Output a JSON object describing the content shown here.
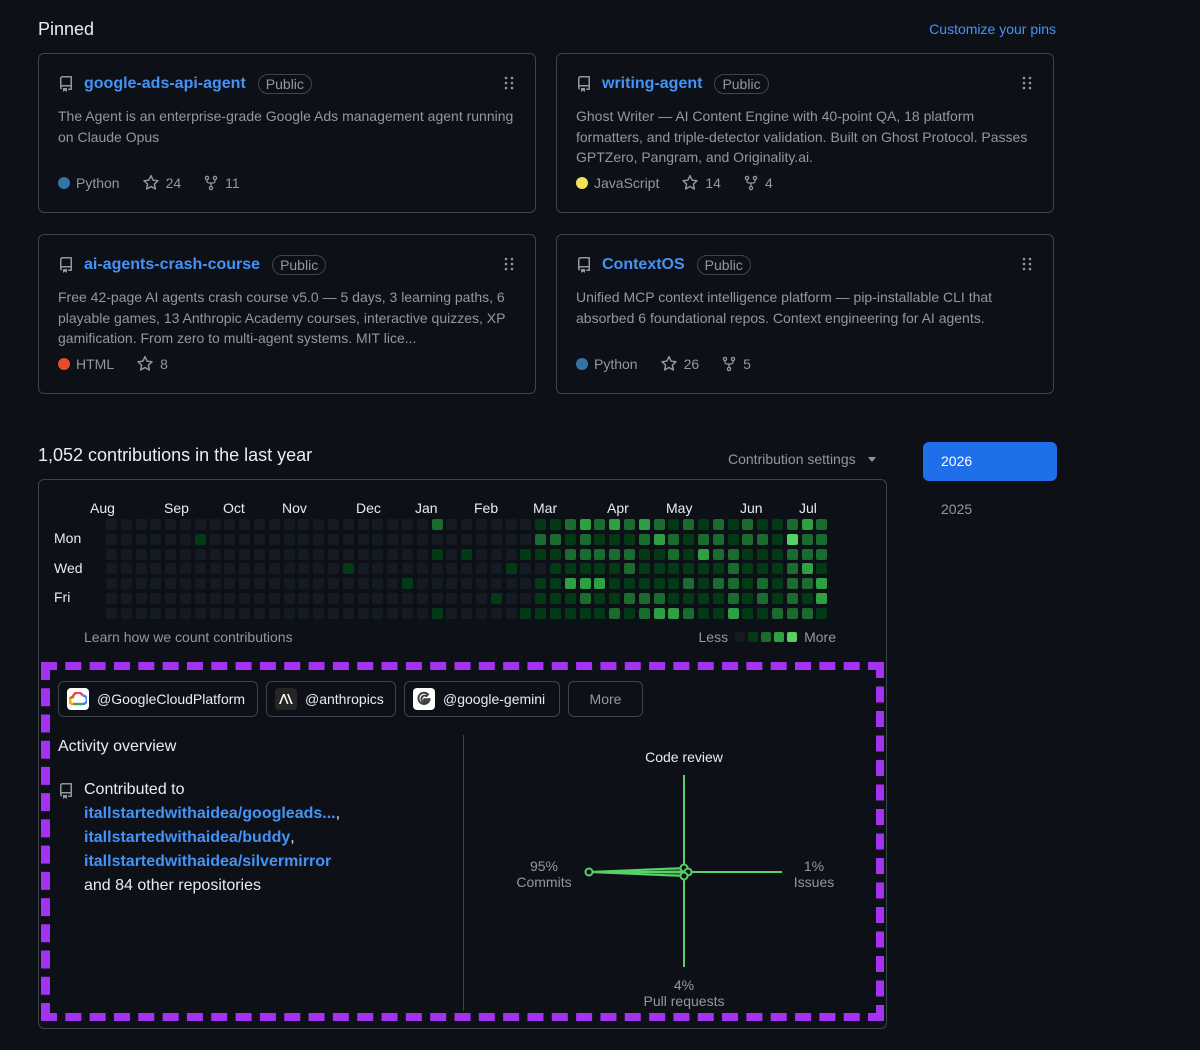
{
  "pinned": {
    "title": "Pinned",
    "customize_label": "Customize your pins",
    "cards": [
      {
        "name": "google-ads-api-agent",
        "visibility": "Public",
        "description": "The Agent is an enterprise-grade Google Ads management agent running on Claude Opus",
        "language": "Python",
        "language_color": "#3572A5",
        "stars": "24",
        "forks": "11"
      },
      {
        "name": "writing-agent",
        "visibility": "Public",
        "description": "Ghost Writer — AI Content Engine with 40-point QA, 18 platform formatters, and triple-detector validation. Built on Ghost Protocol. Passes GPTZero, Pangram, and Originality.ai.",
        "language": "JavaScript",
        "language_color": "#f1e05a",
        "stars": "14",
        "forks": "4"
      },
      {
        "name": "ai-agents-crash-course",
        "visibility": "Public",
        "description": "Free 42-page AI agents crash course v5.0 — 5 days, 3 learning paths, 6 playable games, 13 Anthropic Academy courses, interactive quizzes, XP gamification. From zero to multi-agent systems. MIT lice...",
        "language": "HTML",
        "language_color": "#e34c26",
        "stars": "8",
        "forks": ""
      },
      {
        "name": "ContextOS",
        "visibility": "Public",
        "description": "Unified MCP context intelligence platform — pip-installable CLI that absorbed 6 foundational repos. Context engineering for AI agents.",
        "language": "Python",
        "language_color": "#3572A5",
        "stars": "26",
        "forks": "5"
      }
    ]
  },
  "contributions": {
    "title": "1,052 contributions in the last year",
    "settings_label": "Contribution settings",
    "years": [
      "2026",
      "2025"
    ],
    "selected_year": "2026",
    "months": [
      "Aug",
      "Sep",
      "Oct",
      "Nov",
      "Dec",
      "Jan",
      "Feb",
      "Mar",
      "Apr",
      "May",
      "Jun",
      "Jul"
    ],
    "days": [
      "Mon",
      "Wed",
      "Fri"
    ],
    "learn_label": "Learn how we count contributions",
    "legend_less": "Less",
    "legend_more": "More",
    "level_colors": [
      "#151b23",
      "#033a16",
      "#196c2e",
      "#2ea043",
      "#56d364"
    ],
    "weeks": [
      [
        0,
        0,
        0,
        0,
        0,
        0,
        0
      ],
      [
        0,
        0,
        0,
        0,
        0,
        0,
        0
      ],
      [
        0,
        0,
        0,
        0,
        0,
        0,
        0
      ],
      [
        0,
        0,
        0,
        0,
        0,
        0,
        0
      ],
      [
        0,
        0,
        0,
        0,
        0,
        0,
        0
      ],
      [
        0,
        0,
        0,
        0,
        0,
        0,
        0
      ],
      [
        0,
        1,
        0,
        0,
        0,
        0,
        0
      ],
      [
        0,
        0,
        0,
        0,
        0,
        0,
        0
      ],
      [
        0,
        0,
        0,
        0,
        0,
        0,
        0
      ],
      [
        0,
        0,
        0,
        0,
        0,
        0,
        0
      ],
      [
        0,
        0,
        0,
        0,
        0,
        0,
        0
      ],
      [
        0,
        0,
        0,
        0,
        0,
        0,
        0
      ],
      [
        0,
        0,
        0,
        0,
        0,
        0,
        0
      ],
      [
        0,
        0,
        0,
        0,
        0,
        0,
        0
      ],
      [
        0,
        0,
        0,
        0,
        0,
        0,
        0
      ],
      [
        0,
        0,
        0,
        0,
        0,
        0,
        0
      ],
      [
        0,
        0,
        0,
        1,
        0,
        0,
        0
      ],
      [
        0,
        0,
        0,
        0,
        0,
        0,
        0
      ],
      [
        0,
        0,
        0,
        0,
        0,
        0,
        0
      ],
      [
        0,
        0,
        0,
        0,
        0,
        0,
        0
      ],
      [
        0,
        0,
        0,
        0,
        1,
        0,
        0
      ],
      [
        0,
        0,
        0,
        0,
        0,
        0,
        0
      ],
      [
        2,
        0,
        1,
        0,
        0,
        0,
        1
      ],
      [
        0,
        0,
        0,
        0,
        0,
        0,
        0
      ],
      [
        0,
        0,
        1,
        0,
        0,
        0,
        0
      ],
      [
        0,
        0,
        0,
        0,
        0,
        0,
        0
      ],
      [
        0,
        0,
        0,
        0,
        0,
        1,
        0
      ],
      [
        0,
        0,
        0,
        1,
        0,
        0,
        0
      ],
      [
        0,
        0,
        1,
        0,
        0,
        0,
        1
      ],
      [
        1,
        2,
        1,
        0,
        1,
        1,
        1
      ],
      [
        1,
        2,
        1,
        1,
        1,
        1,
        1
      ],
      [
        2,
        1,
        2,
        1,
        3,
        1,
        1
      ],
      [
        3,
        2,
        2,
        1,
        3,
        2,
        1
      ],
      [
        2,
        1,
        2,
        1,
        3,
        1,
        1
      ],
      [
        3,
        1,
        2,
        1,
        1,
        1,
        2
      ],
      [
        2,
        1,
        2,
        2,
        1,
        2,
        1
      ],
      [
        3,
        2,
        1,
        1,
        1,
        2,
        2
      ],
      [
        2,
        3,
        1,
        1,
        1,
        2,
        3
      ],
      [
        1,
        2,
        2,
        1,
        1,
        1,
        3
      ],
      [
        2,
        1,
        1,
        1,
        2,
        1,
        2
      ],
      [
        1,
        2,
        3,
        1,
        1,
        1,
        1
      ],
      [
        2,
        2,
        2,
        1,
        2,
        1,
        1
      ],
      [
        1,
        1,
        2,
        2,
        2,
        2,
        3
      ],
      [
        2,
        2,
        1,
        1,
        1,
        1,
        1
      ],
      [
        1,
        2,
        1,
        1,
        2,
        2,
        1
      ],
      [
        1,
        1,
        1,
        1,
        1,
        1,
        2
      ],
      [
        2,
        4,
        2,
        2,
        2,
        2,
        2
      ],
      [
        3,
        2,
        2,
        3,
        2,
        1,
        2
      ],
      [
        2,
        2,
        2,
        1,
        3,
        3,
        1
      ]
    ]
  },
  "orgs": [
    {
      "name": "@GoogleCloudPlatform",
      "icon": "google-cloud-icon"
    },
    {
      "name": "@anthropics",
      "icon": "anthropic-icon"
    },
    {
      "name": "@google-gemini",
      "icon": "google-icon"
    }
  ],
  "orgs_more_label": "More",
  "activity": {
    "title": "Activity overview",
    "contributed_to": "Contributed to",
    "repos": [
      "itallstartedwithaidea/googleads...",
      "itallstartedwithaidea/buddy",
      "itallstartedwithaidea/silvermirror"
    ],
    "other_repos": "and 84 other repositories",
    "radar": {
      "code_review": {
        "label": "Code review",
        "percent": "",
        "value": 0
      },
      "commits": {
        "label": "Commits",
        "percent": "95%",
        "value": 95
      },
      "issues": {
        "label": "Issues",
        "percent": "1%",
        "value": 1
      },
      "pull_requests": {
        "label": "Pull requests",
        "percent": "4%",
        "value": 4
      },
      "color": "#56d364"
    }
  }
}
